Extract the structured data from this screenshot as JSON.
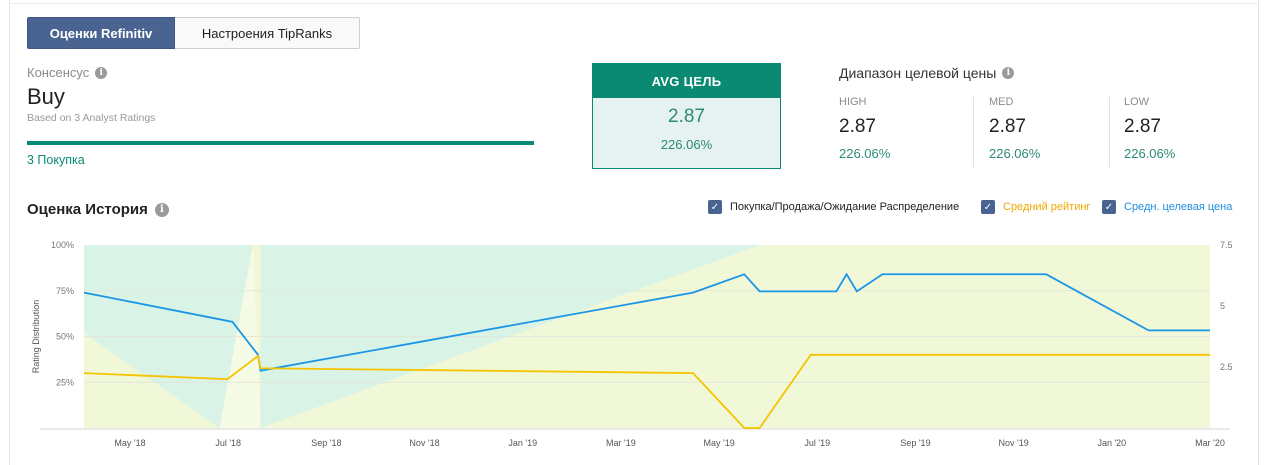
{
  "tabs": {
    "refinitiv": "Оценки Refinitiv",
    "tipranks": "Настроения TipRanks"
  },
  "consensus": {
    "label": "Консенсус",
    "value": "Buy",
    "based_on": "Based on 3 Analyst Ratings",
    "buy_count": "3 Покупка"
  },
  "avg_target": {
    "header": "AVG  ЦЕЛЬ",
    "value": "2.87",
    "percent": "226.06%"
  },
  "range": {
    "title": "Диапазон целевой цены",
    "columns": [
      {
        "label": "HIGH",
        "value": "2.87",
        "percent": "226.06%"
      },
      {
        "label": "MED",
        "value": "2.87",
        "percent": "226.06%"
      },
      {
        "label": "LOW",
        "value": "2.87",
        "percent": "226.06%"
      }
    ]
  },
  "history": {
    "title": "Оценка История",
    "legend": [
      {
        "label": "Покупка/Продажа/Ожидание Распределение",
        "checked": true,
        "color": "#222222"
      },
      {
        "label": "Средний рейтинг",
        "checked": true,
        "color": "#f5b800"
      },
      {
        "label": "Средн. целевая цена",
        "checked": true,
        "color": "#1e90e0"
      }
    ]
  },
  "colors": {
    "accent_green": "#0b8a73",
    "tab_active": "#4a6491",
    "rating_line": "#f5c400",
    "target_line": "#1a96e6",
    "buy_area": "#d9f4e6",
    "hold_area": "#f1f8d8"
  },
  "chart_data": {
    "type": "line",
    "ylabel": "Rating Distribution",
    "x_tick_labels": [
      "May '18",
      "Jul '18",
      "Sep '18",
      "Nov '18",
      "Jan '19",
      "Mar '19",
      "May '19",
      "Jul '19",
      "Sep '19",
      "Nov '19",
      "Jan '20",
      "Mar '20"
    ],
    "y_left_ticks": [
      "100%",
      "75%",
      "50%",
      "25%"
    ],
    "y_right_ticks": [
      "7.5",
      "5",
      "2.5"
    ],
    "ylim_left": [
      0,
      100
    ],
    "ylim_right": [
      0,
      7.5
    ],
    "series": [
      {
        "name": "Средн. целевая цена",
        "axis": "right",
        "points": [
          [
            0.0,
            5.55
          ],
          [
            2.9,
            4.35
          ],
          [
            3.4,
            3.0
          ],
          [
            3.45,
            2.35
          ],
          [
            11.9,
            5.55
          ],
          [
            12.9,
            6.3
          ],
          [
            13.2,
            5.6
          ],
          [
            14.7,
            5.6
          ],
          [
            14.9,
            6.3
          ],
          [
            15.1,
            5.6
          ],
          [
            15.6,
            6.3
          ],
          [
            18.8,
            6.3
          ],
          [
            20.8,
            4.0
          ],
          [
            22.0,
            4.0
          ]
        ]
      },
      {
        "name": "Средний рейтинг",
        "axis": "right",
        "points": [
          [
            0.0,
            2.25
          ],
          [
            2.8,
            2.0
          ],
          [
            3.4,
            2.95
          ],
          [
            3.45,
            2.45
          ],
          [
            11.9,
            2.25
          ],
          [
            12.9,
            0.0
          ],
          [
            13.2,
            0.0
          ],
          [
            14.2,
            3.0
          ],
          [
            22.0,
            3.0
          ]
        ]
      }
    ],
    "areas": [
      {
        "name": "buy",
        "points": [
          [
            0.0,
            100
          ],
          [
            13.0,
            100
          ],
          [
            13.0,
            100
          ],
          [
            3.3,
            100
          ],
          [
            3.0,
            0
          ],
          [
            2.6,
            0
          ],
          [
            0.0,
            52
          ]
        ]
      }
    ]
  }
}
